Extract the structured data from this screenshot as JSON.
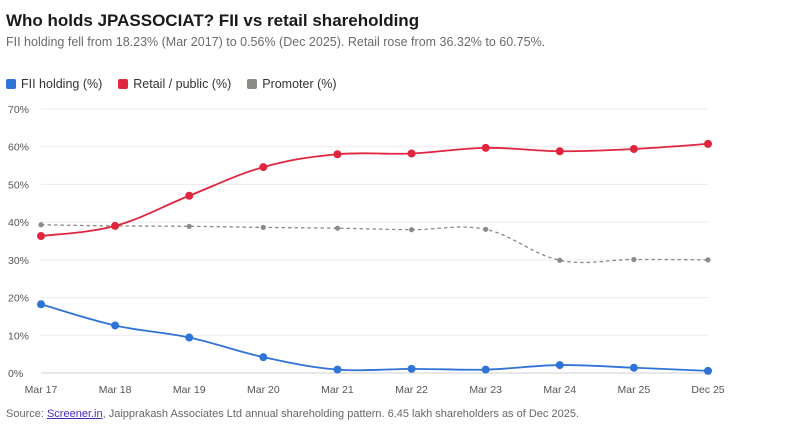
{
  "header": {
    "title": "Who holds JPASSOCIAT? FII vs retail shareholding",
    "subtitle": "FII holding fell from 18.23% (Mar 2017) to 0.56% (Dec 2025). Retail rose from 36.32% to 60.75%."
  },
  "legend": {
    "items": [
      {
        "label": "FII holding (%)",
        "color": "#2f73d6"
      },
      {
        "label": "Retail / public (%)",
        "color": "#e0263e"
      },
      {
        "label": "Promoter (%)",
        "color": "#8a8a87"
      }
    ]
  },
  "footer": {
    "prefix": "Source: ",
    "link": "Screener.in",
    "suffix": ", Jaipprakash Associates Ltd annual shareholding pattern. 6.45 lakh shareholders as of Dec 2025."
  },
  "chart_data": {
    "type": "line",
    "title": "Who holds JPASSOCIAT? FII vs retail shareholding",
    "xlabel": "",
    "ylabel": "",
    "ylim": [
      0,
      70
    ],
    "yticks": [
      0,
      10,
      20,
      30,
      40,
      50,
      60,
      70
    ],
    "ytick_labels": [
      "0%",
      "10%",
      "20%",
      "30%",
      "40%",
      "50%",
      "60%",
      "70%"
    ],
    "grid": true,
    "categories": [
      "Mar 17",
      "Mar 18",
      "Mar 19",
      "Mar 20",
      "Mar 21",
      "Mar 22",
      "Mar 23",
      "Mar 24",
      "Mar 25",
      "Dec 25"
    ],
    "series": [
      {
        "name": "FII holding (%)",
        "color": "#2f73d6",
        "style": "solid",
        "values": [
          18.23,
          12.6,
          9.4,
          4.2,
          0.9,
          1.1,
          0.9,
          2.1,
          1.4,
          0.56
        ]
      },
      {
        "name": "Retail / public (%)",
        "color": "#e0263e",
        "style": "solid",
        "values": [
          36.32,
          39.0,
          47.0,
          54.6,
          58.0,
          58.2,
          59.7,
          58.8,
          59.4,
          60.75
        ]
      },
      {
        "name": "Promoter (%)",
        "color": "#8a8a87",
        "style": "dashed",
        "values": [
          39.3,
          39.0,
          38.9,
          38.6,
          38.4,
          38.0,
          38.1,
          29.9,
          30.1,
          30.0
        ]
      }
    ]
  }
}
